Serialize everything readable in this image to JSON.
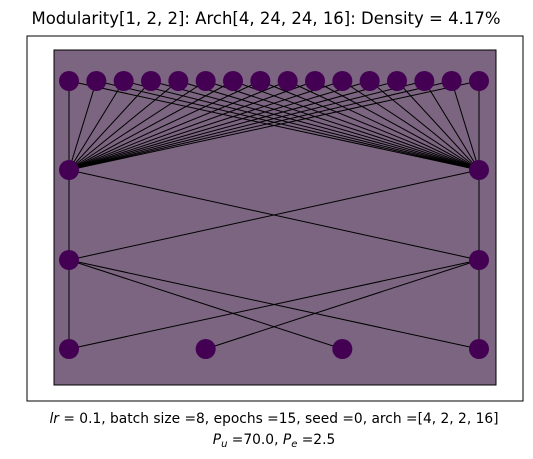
{
  "title": "Modularity[1, 2, 2]: Arch[4, 24, 24, 16]: Density = 4.17%",
  "caption": {
    "line1_symbol": "lr",
    "line1_rest": " =  0.1, batch size =8, epochs =15, seed =0, arch =[4, 2, 2, 16]",
    "line2_pu_symbol": "P",
    "line2_pu_sub": "u",
    "line2_pu_value": " =70.0, ",
    "line2_pe_symbol": "P",
    "line2_pe_sub": "e",
    "line2_pe_value": " =2.5"
  },
  "colors": {
    "node": "#440154",
    "panel_fill": "#7b6580",
    "edge": "#000000"
  },
  "network": {
    "layers": [
      16,
      2,
      2,
      4
    ],
    "edges": [
      {
        "from": [
          0,
          0
        ],
        "to_layer": 1,
        "to": [
          0,
          1
        ],
        "comment_skip": true
      },
      {
        "from_layer": 0,
        "to_layer": 1,
        "pairs": "all"
      },
      {
        "from_layer": 1,
        "to_layer": 2,
        "pairs": [
          [
            0,
            0
          ],
          [
            0,
            1
          ],
          [
            1,
            0
          ],
          [
            1,
            1
          ]
        ]
      },
      {
        "from_layer": 2,
        "to_layer": 3,
        "pairs": [
          [
            0,
            0
          ],
          [
            0,
            2
          ],
          [
            0,
            3
          ],
          [
            1,
            0
          ],
          [
            1,
            1
          ],
          [
            1,
            3
          ]
        ]
      }
    ],
    "vertical_links": [
      [
        0,
        0,
        1,
        0
      ],
      [
        1,
        0,
        2,
        0
      ],
      [
        2,
        0,
        3,
        0
      ],
      [
        0,
        15,
        1,
        1
      ],
      [
        1,
        1,
        2,
        1
      ],
      [
        2,
        1,
        3,
        3
      ]
    ]
  }
}
